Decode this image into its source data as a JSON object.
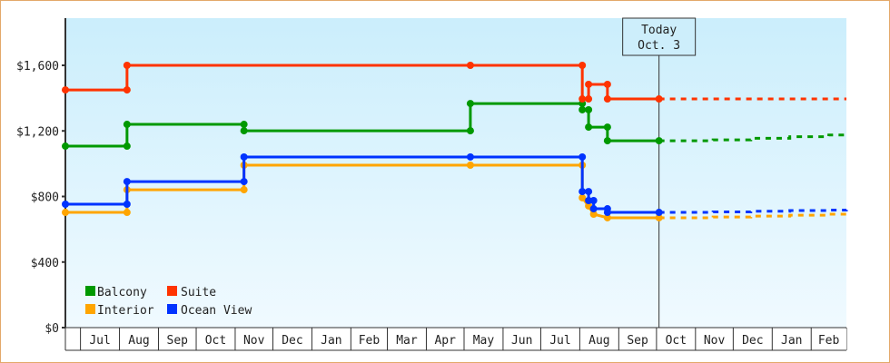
{
  "chart_data": {
    "type": "line",
    "title": "",
    "xlabel": "",
    "ylabel": "",
    "ylim": [
      0,
      1850
    ],
    "y_ticks": [
      "$0",
      "$400",
      "$800",
      "$1,200",
      "$1,600"
    ],
    "y_tick_values": [
      0,
      400,
      800,
      1200,
      1600
    ],
    "x_range": [
      "2023-06-19",
      "2025-03-01"
    ],
    "x_tick_labels": [
      "Jul",
      "Aug",
      "Sep",
      "Oct",
      "Nov",
      "Dec",
      "Jan",
      "Feb",
      "Mar",
      "Apr",
      "May",
      "Jun",
      "Jul",
      "Aug",
      "Sep",
      "Oct",
      "Nov",
      "Dec",
      "Jan",
      "Feb"
    ],
    "x_tick_starts": [
      "2023-07-01",
      "2023-08-01",
      "2023-09-01",
      "2023-10-01",
      "2023-11-01",
      "2023-12-01",
      "2024-01-01",
      "2024-02-01",
      "2024-03-01",
      "2024-04-01",
      "2024-05-01",
      "2024-06-01",
      "2024-07-01",
      "2024-08-01",
      "2024-09-01",
      "2024-10-01",
      "2024-11-01",
      "2024-12-01",
      "2025-01-01",
      "2025-02-01"
    ],
    "grid": false,
    "legend_position": "bottom-left",
    "today": {
      "label": "Today",
      "date_label": "Oct. 3",
      "date": "2024-10-03"
    },
    "series": [
      {
        "name": "Balcony",
        "color": "#009900",
        "points": [
          [
            "2023-06-19",
            1107
          ],
          [
            "2023-08-07",
            1107
          ],
          [
            "2023-08-07",
            1240
          ],
          [
            "2023-11-08",
            1240
          ],
          [
            "2023-11-08",
            1201
          ],
          [
            "2024-05-06",
            1201
          ],
          [
            "2024-05-06",
            1367
          ],
          [
            "2024-08-03",
            1367
          ],
          [
            "2024-08-03",
            1329
          ],
          [
            "2024-08-08",
            1329
          ],
          [
            "2024-08-08",
            1223
          ],
          [
            "2024-08-23",
            1223
          ],
          [
            "2024-08-23",
            1140
          ],
          [
            "2024-10-03",
            1140
          ]
        ],
        "forecast": [
          [
            "2024-10-03",
            1140
          ],
          [
            "2024-11-15",
            1145
          ],
          [
            "2024-12-15",
            1155
          ],
          [
            "2025-01-15",
            1165
          ],
          [
            "2025-02-15",
            1175
          ],
          [
            "2025-03-01",
            1180
          ]
        ]
      },
      {
        "name": "Suite",
        "color": "#ff3300",
        "points": [
          [
            "2023-06-19",
            1450
          ],
          [
            "2023-08-07",
            1450
          ],
          [
            "2023-08-07",
            1600
          ],
          [
            "2024-05-06",
            1600
          ],
          [
            "2024-08-03",
            1600
          ],
          [
            "2024-08-03",
            1395
          ],
          [
            "2024-08-08",
            1395
          ],
          [
            "2024-08-08",
            1484
          ],
          [
            "2024-08-23",
            1484
          ],
          [
            "2024-08-23",
            1395
          ],
          [
            "2024-10-03",
            1395
          ]
        ],
        "forecast": [
          [
            "2024-10-03",
            1395
          ],
          [
            "2025-03-01",
            1395
          ]
        ]
      },
      {
        "name": "Interior",
        "color": "#ffa500",
        "points": [
          [
            "2023-06-19",
            703
          ],
          [
            "2023-08-07",
            703
          ],
          [
            "2023-08-07",
            841
          ],
          [
            "2023-11-08",
            841
          ],
          [
            "2023-11-08",
            991
          ],
          [
            "2024-05-06",
            991
          ],
          [
            "2024-08-03",
            991
          ],
          [
            "2024-08-03",
            792
          ],
          [
            "2024-08-08",
            742
          ],
          [
            "2024-08-12",
            692
          ],
          [
            "2024-08-23",
            670
          ],
          [
            "2024-10-03",
            670
          ]
        ],
        "forecast": [
          [
            "2024-10-03",
            670
          ],
          [
            "2024-11-15",
            675
          ],
          [
            "2024-12-15",
            680
          ],
          [
            "2025-01-15",
            686
          ],
          [
            "2025-02-15",
            692
          ],
          [
            "2025-03-01",
            695
          ]
        ]
      },
      {
        "name": "Ocean View",
        "color": "#0033ff",
        "points": [
          [
            "2023-06-19",
            753
          ],
          [
            "2023-08-07",
            753
          ],
          [
            "2023-08-07",
            891
          ],
          [
            "2023-11-08",
            891
          ],
          [
            "2023-11-08",
            1041
          ],
          [
            "2024-05-06",
            1041
          ],
          [
            "2024-08-03",
            1041
          ],
          [
            "2024-08-03",
            830
          ],
          [
            "2024-08-08",
            830
          ],
          [
            "2024-08-08",
            775
          ],
          [
            "2024-08-12",
            775
          ],
          [
            "2024-08-12",
            725
          ],
          [
            "2024-08-23",
            725
          ],
          [
            "2024-08-23",
            703
          ],
          [
            "2024-10-03",
            703
          ]
        ],
        "forecast": [
          [
            "2024-10-03",
            703
          ],
          [
            "2024-11-15",
            706
          ],
          [
            "2024-12-15",
            710
          ],
          [
            "2025-01-15",
            714
          ],
          [
            "2025-02-15",
            717
          ],
          [
            "2025-03-01",
            718
          ]
        ]
      }
    ]
  }
}
